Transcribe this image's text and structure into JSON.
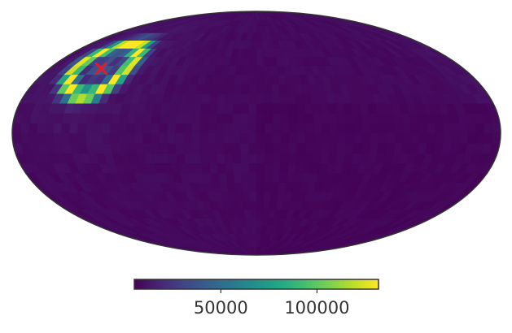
{
  "chart_data": {
    "type": "heatmap",
    "projection": "mollweide",
    "title": "",
    "colormap": "viridis",
    "colors": {
      "background": "#440154",
      "outline": "#333333",
      "marker": "#e8192c"
    },
    "colorbar": {
      "min": 5000,
      "max": 132000,
      "ticks": [
        50000,
        100000
      ],
      "tick_labels": [
        "50000",
        "100000"
      ],
      "orientation": "horizontal",
      "placement": "bottom"
    },
    "hotspot": {
      "center_lon_deg": 135,
      "center_lat_deg": 40,
      "ring_radius_deg": 17,
      "ring_width_deg": 4.5,
      "peak_value": 132000,
      "background_value": 8000
    },
    "marker": {
      "symbol": "x",
      "lon_deg": 135,
      "lat_deg": 40
    }
  }
}
